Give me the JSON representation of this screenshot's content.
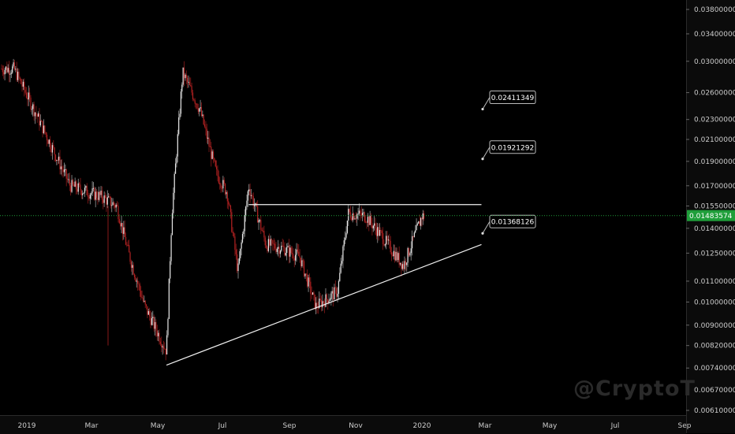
{
  "watermark": "@CryptoT",
  "current_price": "0.01483574",
  "colors": {
    "background": "#000000",
    "candle_up": "#e8e8e8",
    "candle_down": "#b22222",
    "wick": "#8a1a1a",
    "current_price_line": "#1f9e3a",
    "trendline": "#f0f0f0",
    "axis_text": "#cccccc"
  },
  "chart_data": {
    "type": "candlestick",
    "y_scale": "log",
    "ylim": [
      0.0059,
      0.04
    ],
    "x_labels": [
      "2019",
      "Mar",
      "May",
      "Jul",
      "Sep",
      "Nov",
      "2020",
      "Mar",
      "May",
      "Jul",
      "Sep"
    ],
    "y_ticks": [
      "0.03800000",
      "0.03400000",
      "0.03000000",
      "0.02600000",
      "0.02300000",
      "0.02100000",
      "0.01900000",
      "0.01700000",
      "0.01550000",
      "0.01400000",
      "0.01250000",
      "0.01100000",
      "0.01000000",
      "0.00900000",
      "0.00820000",
      "0.00740000",
      "0.00670000",
      "0.00610000"
    ],
    "price_series_approx": [
      {
        "date": "2018-12-20",
        "close": 0.029
      },
      {
        "date": "2019-01-10",
        "close": 0.0235
      },
      {
        "date": "2019-02-10",
        "close": 0.017
      },
      {
        "date": "2019-03-10",
        "close": 0.0162
      },
      {
        "date": "2019-03-25",
        "close": 0.0155
      },
      {
        "date": "2019-04-05",
        "close": 0.0125
      },
      {
        "date": "2019-04-20",
        "close": 0.0098
      },
      {
        "date": "2019-05-10",
        "close": 0.008
      },
      {
        "date": "2019-05-15",
        "close": 0.015
      },
      {
        "date": "2019-05-25",
        "close": 0.0285
      },
      {
        "date": "2019-06-10",
        "close": 0.024
      },
      {
        "date": "2019-06-25",
        "close": 0.018
      },
      {
        "date": "2019-07-05",
        "close": 0.0165
      },
      {
        "date": "2019-07-15",
        "close": 0.0115
      },
      {
        "date": "2019-07-25",
        "close": 0.017
      },
      {
        "date": "2019-08-10",
        "close": 0.013
      },
      {
        "date": "2019-08-25",
        "close": 0.0128
      },
      {
        "date": "2019-09-10",
        "close": 0.0123
      },
      {
        "date": "2019-09-25",
        "close": 0.0098
      },
      {
        "date": "2019-10-15",
        "close": 0.0105
      },
      {
        "date": "2019-10-25",
        "close": 0.015
      },
      {
        "date": "2019-11-10",
        "close": 0.0148
      },
      {
        "date": "2019-11-25",
        "close": 0.0135
      },
      {
        "date": "2019-12-15",
        "close": 0.0118
      },
      {
        "date": "2020-01-01",
        "close": 0.0148
      }
    ],
    "annotations": [
      {
        "type": "horizontal_line",
        "price": 0.0156,
        "from": "2019-07-25",
        "to": "2020-02-25"
      },
      {
        "type": "trendline",
        "from": {
          "date": "2019-05-10",
          "price": 0.0075
        },
        "to": {
          "date": "2020-02-25",
          "price": 0.013
        }
      },
      {
        "type": "target",
        "label": "0.02411349",
        "price": 0.02411349
      },
      {
        "type": "target",
        "label": "0.01921292",
        "price": 0.01921292
      },
      {
        "type": "target",
        "label": "0.01368126",
        "price": 0.01368126
      }
    ]
  }
}
